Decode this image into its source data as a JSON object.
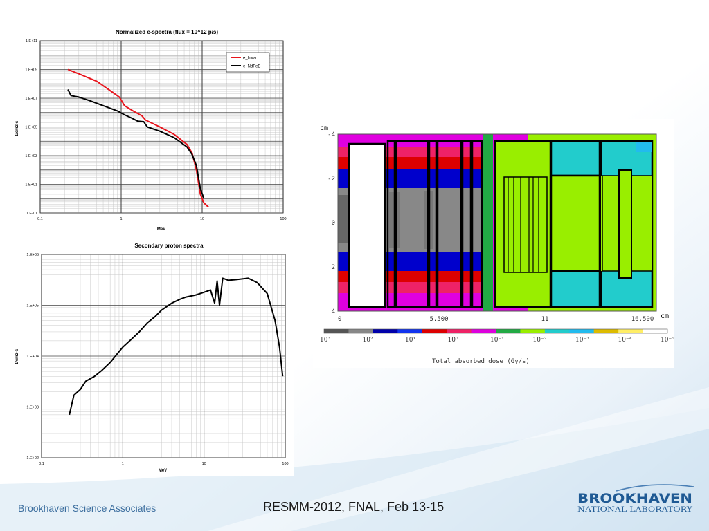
{
  "footer": {
    "organization": "Brookhaven Science Associates",
    "event": "RESMM-2012, FNAL, Feb 13-15"
  },
  "logo": {
    "line1": "BROOKHAVEN",
    "line2": "NATIONAL LABORATORY"
  },
  "colors": {
    "invar": "#e8141c",
    "ndfeb": "#000000",
    "proton": "#000000",
    "logo_blue": "#1f5a94"
  },
  "chart_data": [
    {
      "type": "line",
      "title": "Normalized e-spectra (flux = 10^12 p/s)",
      "xlabel": "MeV",
      "ylabel": "1/cm2-s",
      "xscale": "log",
      "yscale": "log",
      "xlim": [
        0.1,
        100
      ],
      "ylim": [
        0.1,
        100000000000.0
      ],
      "xticks": [
        "0.1",
        "1",
        "10",
        "100"
      ],
      "yticks": [
        "1.E-01",
        "1.E+01",
        "1.E+03",
        "1.E+05",
        "1.E+07",
        "1.E+09",
        "1.E+11"
      ],
      "grid": true,
      "legend": "top-right",
      "series": [
        {
          "name": "e_Invar",
          "color": "#e8141c",
          "points": [
            [
              0.22,
              1000000000.0
            ],
            [
              0.3,
              500000000.0
            ],
            [
              0.5,
              150000000.0
            ],
            [
              0.7,
              40000000.0
            ],
            [
              0.95,
              12000000.0
            ],
            [
              1.1,
              3000000.0
            ],
            [
              1.4,
              1300000.0
            ],
            [
              1.8,
              600000.0
            ],
            [
              2.0,
              300000.0
            ],
            [
              3.0,
              100000.0
            ],
            [
              4.5,
              30000.0
            ],
            [
              6.5,
              6000.0
            ],
            [
              7.5,
              1500.0
            ],
            [
              8.5,
              100.0
            ],
            [
              9.5,
              2
            ],
            [
              10.5,
              0.5
            ],
            [
              12.0,
              0.25
            ]
          ]
        },
        {
          "name": "e_NdFeB",
          "color": "#000000",
          "points": [
            [
              0.22,
              40000000.0
            ],
            [
              0.24,
              15000000.0
            ],
            [
              0.3,
              12000000.0
            ],
            [
              0.4,
              7000000.0
            ],
            [
              0.6,
              3000000.0
            ],
            [
              0.9,
              1300000.0
            ],
            [
              1.1,
              700000.0
            ],
            [
              1.3,
              450000.0
            ],
            [
              1.6,
              250000.0
            ],
            [
              1.9,
              230000.0
            ],
            [
              2.1,
              100000.0
            ],
            [
              3.0,
              50000.0
            ],
            [
              4.5,
              18000.0
            ],
            [
              6.5,
              4000.0
            ],
            [
              7.5,
              1200.0
            ],
            [
              8.5,
              200.0
            ],
            [
              9.5,
              5
            ],
            [
              10.5,
              1.0
            ]
          ]
        }
      ]
    },
    {
      "type": "line",
      "title": "Secondary proton spectra",
      "xlabel": "MeV",
      "ylabel": "1/cm2-s",
      "xscale": "log",
      "yscale": "log",
      "xlim": [
        0.1,
        100
      ],
      "ylim": [
        100,
        1000000
      ],
      "xticks": [
        "0.1",
        "1",
        "10",
        "100"
      ],
      "yticks": [
        "1.E+02",
        "1.E+03",
        "1.E+04",
        "1.E+05",
        "1.E+06"
      ],
      "grid": true,
      "series": [
        {
          "name": "",
          "color": "#000000",
          "points": [
            [
              0.22,
              700
            ],
            [
              0.25,
              1700
            ],
            [
              0.3,
              2200
            ],
            [
              0.35,
              3200
            ],
            [
              0.45,
              4000
            ],
            [
              0.55,
              5200
            ],
            [
              0.7,
              7500
            ],
            [
              0.85,
              11000
            ],
            [
              1.0,
              15000
            ],
            [
              1.3,
              22000
            ],
            [
              1.6,
              30000
            ],
            [
              2.0,
              45000
            ],
            [
              2.5,
              60000
            ],
            [
              3.0,
              80000
            ],
            [
              4.0,
              110000
            ],
            [
              5.0,
              130000
            ],
            [
              6.0,
              145000
            ],
            [
              8.0,
              160000
            ],
            [
              10.0,
              180000
            ],
            [
              12.0,
              200000
            ],
            [
              13.5,
              110000
            ],
            [
              14.5,
              300000
            ],
            [
              15.5,
              100000
            ],
            [
              17.0,
              340000
            ],
            [
              20.0,
              310000
            ],
            [
              25.0,
              320000
            ],
            [
              35.0,
              340000
            ],
            [
              45.0,
              280000
            ],
            [
              60.0,
              170000
            ],
            [
              75.0,
              50000
            ],
            [
              85.0,
              15000
            ],
            [
              93.0,
              4000
            ]
          ]
        }
      ]
    },
    {
      "type": "heatmap",
      "title": "",
      "xlabel": "cm",
      "ylabel": "cm",
      "colorbar_label": "Total absorbed dose (Gy/s)",
      "x_tick_labels": [
        "0",
        "5.500",
        "11",
        "16.500"
      ],
      "y_tick_labels": [
        "-4",
        "-2",
        "0",
        "2",
        "4"
      ],
      "colorbar_ticks": [
        "10³",
        "10²",
        "10¹",
        "10⁰",
        "10⁻¹",
        "10⁻²",
        "10⁻³",
        "10⁻⁴",
        "10⁻⁵"
      ],
      "colorbar_colors": [
        "#555555",
        "#888888",
        "#0000aa",
        "#1133ee",
        "#dd0000",
        "#ee2266",
        "#dd00dd",
        "#22aa44",
        "#99ee00",
        "#22cccc",
        "#22bbee",
        "#ddbb00",
        "#ffee66",
        "#ffffff"
      ]
    }
  ]
}
